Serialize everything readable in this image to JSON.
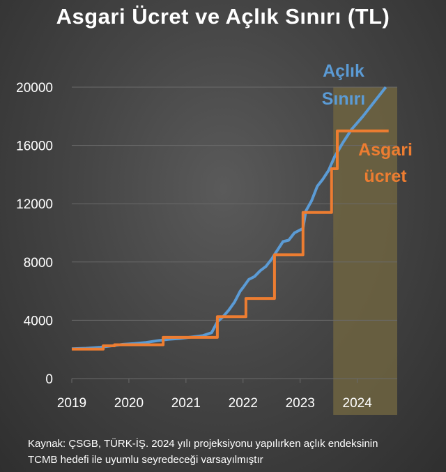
{
  "colors": {
    "aclik": "#5b9bd5",
    "asgari": "#ed7d31",
    "projection": "#6e6441",
    "grid": "#6a6a6a",
    "text": "#ffffff"
  },
  "source_note": "Kaynak: ÇSGB, TÜRK-İŞ. 2024 yılı projeksiyonu yapılırken açlık endeksinin\nTCMB hedefi ile uyumlu seyredeceği varsayılmıştır",
  "chart_data": {
    "type": "line",
    "title": "Asgari Ücret ve Açlık Sınırı (TL)",
    "xlabel": "",
    "ylabel": "",
    "xlim": [
      2019,
      2024.7
    ],
    "ylim": [
      0,
      20000
    ],
    "x_ticks": [
      "2019",
      "2020",
      "2021",
      "2022",
      "2023",
      "2024"
    ],
    "y_ticks": [
      "0",
      "4000",
      "8000",
      "12000",
      "16000",
      "20000"
    ],
    "grid": true,
    "legend": "inline labels, right",
    "projection_band": [
      2023.58,
      2024.7
    ],
    "series": [
      {
        "name": "Açlık Sınırı",
        "label_lines": [
          "Açlık",
          "Sınırı"
        ],
        "color": "#5b9bd5",
        "x": [
          2019.0,
          2019.25,
          2019.5,
          2019.7,
          2019.9,
          2020.1,
          2020.3,
          2020.5,
          2020.7,
          2020.9,
          2021.1,
          2021.3,
          2021.45,
          2021.55,
          2021.65,
          2021.75,
          2021.85,
          2021.95,
          2022.0,
          2022.1,
          2022.2,
          2022.3,
          2022.4,
          2022.5,
          2022.6,
          2022.7,
          2022.8,
          2022.9,
          2023.0,
          2023.05,
          2023.1,
          2023.2,
          2023.3,
          2023.4,
          2023.5,
          2023.6,
          2023.75,
          2023.9,
          2024.1,
          2024.3,
          2024.5
        ],
        "values": [
          2050,
          2080,
          2150,
          2250,
          2350,
          2400,
          2480,
          2600,
          2700,
          2750,
          2850,
          2950,
          3150,
          3900,
          4250,
          4700,
          5250,
          6000,
          6250,
          6800,
          7000,
          7400,
          7700,
          8200,
          8800,
          9400,
          9500,
          10000,
          10200,
          10300,
          11500,
          12200,
          13200,
          13700,
          14300,
          15200,
          16200,
          17100,
          18000,
          19000,
          20000
        ]
      },
      {
        "name": "Asgari ücret",
        "label_lines": [
          "Asgari",
          "ücret"
        ],
        "color": "#ed7d31",
        "x": [
          2019.0,
          2019.55,
          2019.55,
          2019.75,
          2019.75,
          2020.6,
          2020.6,
          2021.55,
          2021.55,
          2022.05,
          2022.05,
          2022.55,
          2022.55,
          2023.05,
          2023.05,
          2023.55,
          2023.55,
          2023.65,
          2023.65,
          2024.55
        ],
        "values": [
          2020,
          2020,
          2250,
          2250,
          2320,
          2320,
          2830,
          2830,
          4250,
          4250,
          5500,
          5500,
          8500,
          8500,
          11400,
          11400,
          14400,
          14400,
          17000,
          17000
        ]
      }
    ]
  }
}
